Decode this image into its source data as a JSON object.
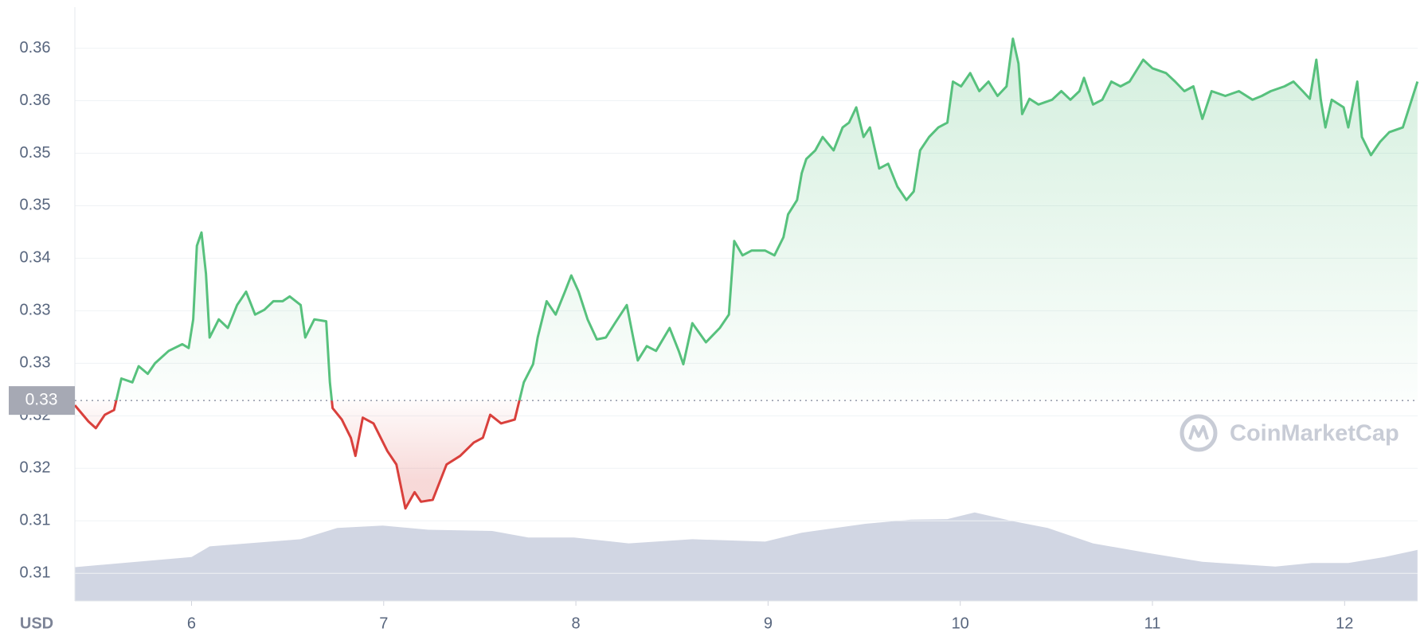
{
  "chart_data": {
    "type": "line",
    "x_axis_unit": "USD",
    "watermark": "CoinMarketCap",
    "color": "#57c17d",
    "down_color": "#d9403c",
    "grid": true,
    "xlim": [
      5.393,
      12.38
    ],
    "xticks": [
      6,
      7,
      8,
      9,
      10,
      11,
      12
    ],
    "ylim": [
      0.3041,
      0.3663
    ],
    "yticks": [
      {
        "value": 0.362,
        "label": "0.36"
      },
      {
        "value": 0.3565,
        "label": "0.36"
      },
      {
        "value": 0.351,
        "label": "0.35"
      },
      {
        "value": 0.3455,
        "label": "0.35"
      },
      {
        "value": 0.34,
        "label": "0.34"
      },
      {
        "value": 0.3345,
        "label": "0.33"
      },
      {
        "value": 0.329,
        "label": "0.33"
      },
      {
        "value": 0.3235,
        "label": "0.32"
      },
      {
        "value": 0.318,
        "label": "0.32"
      },
      {
        "value": 0.3125,
        "label": "0.31"
      },
      {
        "value": 0.307,
        "label": "0.31"
      }
    ],
    "baseline": {
      "value": 0.3251,
      "label": "0.33"
    },
    "x": [
      5.393,
      5.464,
      5.502,
      5.549,
      5.597,
      5.635,
      5.692,
      5.725,
      5.772,
      5.81,
      5.881,
      5.952,
      5.985,
      6.009,
      6.028,
      6.052,
      6.075,
      6.094,
      6.142,
      6.189,
      6.237,
      6.284,
      6.331,
      6.379,
      6.426,
      6.474,
      6.511,
      6.568,
      6.592,
      6.639,
      6.701,
      6.72,
      6.734,
      6.782,
      6.829,
      6.853,
      6.891,
      6.947,
      7.019,
      7.066,
      7.113,
      7.161,
      7.194,
      7.255,
      7.327,
      7.398,
      7.469,
      7.516,
      7.554,
      7.611,
      7.682,
      7.729,
      7.777,
      7.801,
      7.848,
      7.895,
      7.943,
      7.976,
      8.014,
      8.061,
      8.109,
      8.156,
      8.203,
      8.265,
      8.298,
      8.322,
      8.369,
      8.417,
      8.488,
      8.535,
      8.559,
      8.606,
      8.677,
      8.749,
      8.796,
      8.824,
      8.867,
      8.914,
      8.985,
      9.033,
      9.08,
      9.104,
      9.151,
      9.175,
      9.199,
      9.246,
      9.284,
      9.341,
      9.388,
      9.421,
      9.459,
      9.497,
      9.53,
      9.578,
      9.625,
      9.673,
      9.72,
      9.758,
      9.791,
      9.838,
      9.886,
      9.933,
      9.962,
      10.004,
      10.052,
      10.099,
      10.147,
      10.194,
      10.241,
      10.274,
      10.303,
      10.322,
      10.36,
      10.407,
      10.478,
      10.526,
      10.573,
      10.62,
      10.644,
      10.691,
      10.739,
      10.786,
      10.834,
      10.881,
      10.952,
      11.0,
      11.071,
      11.118,
      11.166,
      11.213,
      11.26,
      11.308,
      11.379,
      11.45,
      11.521,
      11.569,
      11.616,
      11.687,
      11.734,
      11.782,
      11.819,
      11.853,
      11.876,
      11.9,
      11.933,
      11.995,
      12.019,
      12.066,
      12.09,
      12.137,
      12.185,
      12.232,
      12.303,
      12.341,
      12.379
    ],
    "values": [
      0.3246,
      0.3229,
      0.3222,
      0.3236,
      0.3241,
      0.3274,
      0.327,
      0.3287,
      0.3279,
      0.329,
      0.3303,
      0.331,
      0.3306,
      0.3336,
      0.3413,
      0.3427,
      0.3384,
      0.3317,
      0.3336,
      0.3327,
      0.3351,
      0.3365,
      0.3341,
      0.3346,
      0.3355,
      0.3355,
      0.336,
      0.3351,
      0.3317,
      0.3336,
      0.3334,
      0.327,
      0.3243,
      0.3231,
      0.3212,
      0.3193,
      0.3233,
      0.3227,
      0.3198,
      0.3184,
      0.3138,
      0.3155,
      0.3145,
      0.3147,
      0.3184,
      0.3193,
      0.3207,
      0.3212,
      0.3236,
      0.3227,
      0.3231,
      0.327,
      0.3289,
      0.3317,
      0.3355,
      0.3341,
      0.3365,
      0.3382,
      0.3365,
      0.3336,
      0.3315,
      0.3317,
      0.3332,
      0.3351,
      0.3317,
      0.3293,
      0.3308,
      0.3303,
      0.3327,
      0.3303,
      0.3289,
      0.3332,
      0.3312,
      0.3327,
      0.3341,
      0.3418,
      0.3403,
      0.3408,
      0.3408,
      0.3403,
      0.3422,
      0.3446,
      0.3461,
      0.3489,
      0.3504,
      0.3513,
      0.3527,
      0.3513,
      0.3537,
      0.3542,
      0.3558,
      0.3527,
      0.3537,
      0.3494,
      0.3499,
      0.3475,
      0.3461,
      0.347,
      0.3513,
      0.3527,
      0.3537,
      0.3542,
      0.3585,
      0.358,
      0.3594,
      0.3575,
      0.3585,
      0.357,
      0.358,
      0.363,
      0.3604,
      0.3551,
      0.3567,
      0.3561,
      0.3566,
      0.3575,
      0.3566,
      0.3575,
      0.3589,
      0.3561,
      0.3566,
      0.3585,
      0.358,
      0.3585,
      0.3608,
      0.3599,
      0.3594,
      0.3585,
      0.3575,
      0.358,
      0.3546,
      0.3575,
      0.357,
      0.3575,
      0.3566,
      0.357,
      0.3575,
      0.358,
      0.3585,
      0.3575,
      0.3567,
      0.3608,
      0.3566,
      0.3537,
      0.3566,
      0.3558,
      0.3537,
      0.3585,
      0.3527,
      0.3508,
      0.3522,
      0.3532,
      0.3537,
      0.3561,
      0.3585
    ],
    "volume": {
      "axis": "y2",
      "color": "#d1d6e3",
      "x": [
        5.393,
        6.0,
        6.094,
        6.568,
        6.758,
        6.995,
        7.232,
        7.564,
        7.753,
        7.99,
        8.275,
        8.606,
        8.985,
        9.175,
        9.507,
        9.744,
        9.933,
        10.075,
        10.265,
        10.455,
        10.691,
        10.976,
        11.26,
        11.64,
        11.829,
        12.019,
        12.208,
        12.379
      ],
      "values": [
        5.7,
        7.4,
        9.2,
        10.4,
        12.3,
        12.7,
        12.0,
        11.8,
        10.7,
        10.7,
        9.7,
        10.4,
        10.0,
        11.5,
        13.0,
        13.7,
        13.8,
        14.9,
        13.5,
        12.3,
        9.7,
        8.1,
        6.6,
        5.8,
        6.4,
        6.4,
        7.4,
        8.6
      ]
    },
    "y2lim": [
      0,
      100
    ]
  }
}
